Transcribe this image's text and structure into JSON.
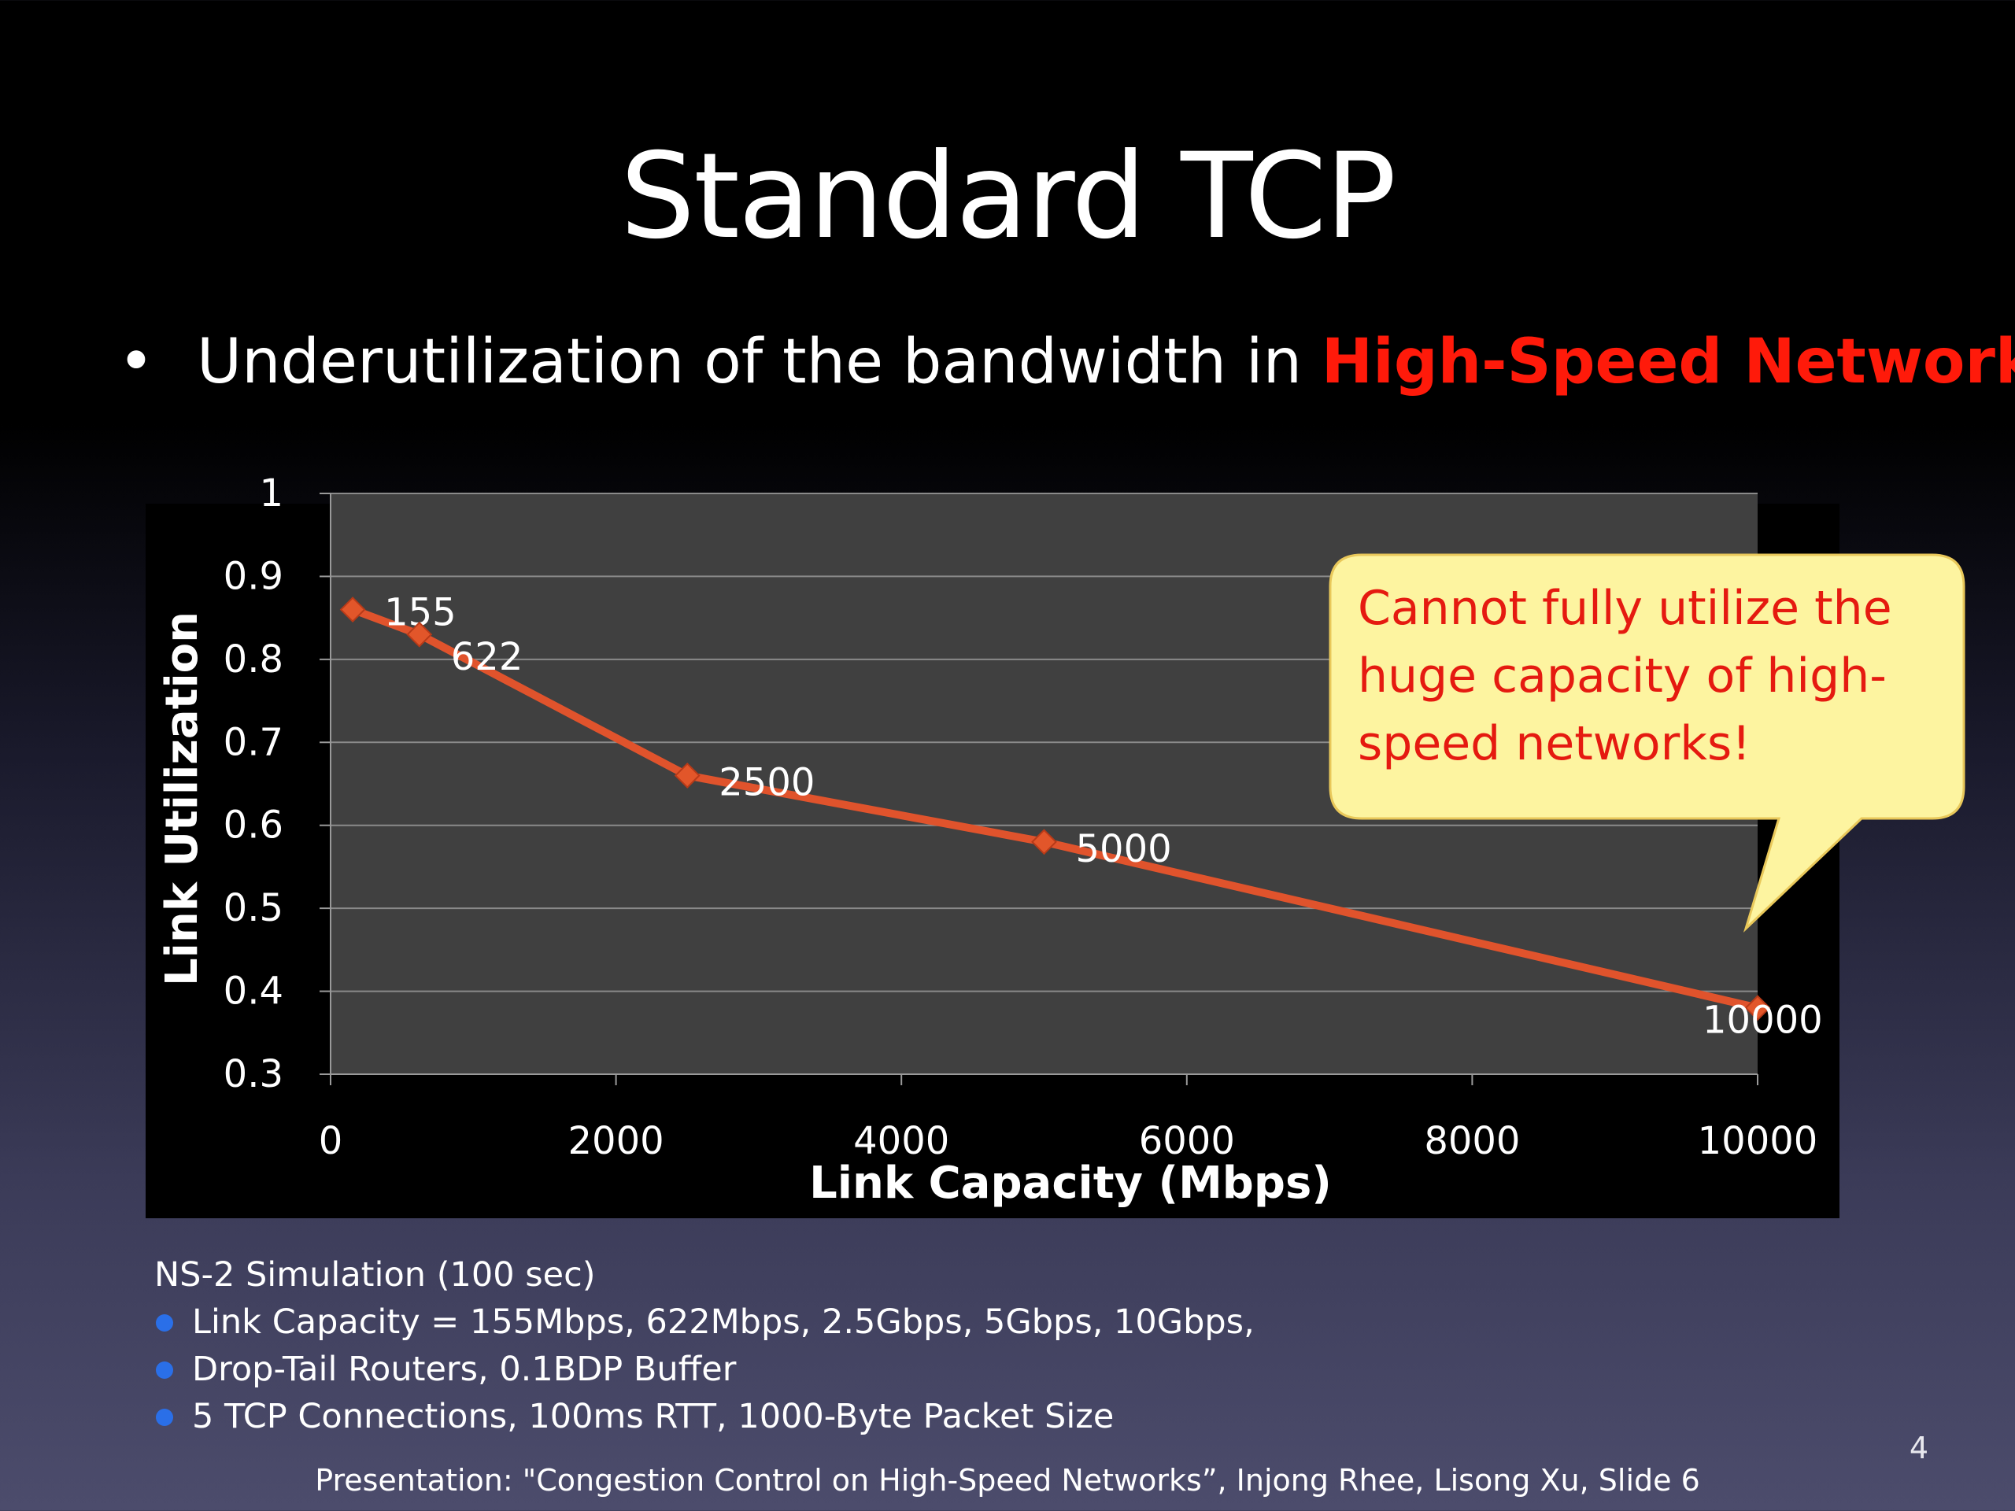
{
  "slide": {
    "title": "Standard TCP",
    "headline": {
      "bullet": "•",
      "text_plain": "Underutilization of the bandwidth in ",
      "text_highlight": "High-Speed Network"
    },
    "callout": "Cannot fully utilize the huge capacity of high-speed networks!",
    "notes": [
      "NS-2 Simulation (100 sec)",
      "Link Capacity = 155Mbps, 622Mbps, 2.5Gbps, 5Gbps, 10Gbps,",
      "Drop-Tail Routers, 0.1BDP Buffer",
      "5 TCP Connections, 100ms RTT, 1000-Byte Packet Size"
    ],
    "citation": "Presentation: \"Congestion Control on High-Speed Networks”, Injong Rhee, Lisong Xu, Slide 6",
    "slide_number": "4"
  },
  "colors": {
    "highlight": "#ff1a0a",
    "series_line": "#e0532c",
    "marker": "#e2562a",
    "plot_background": "#404040",
    "callout_fill": "#fdf4a0",
    "callout_text": "#e51a10",
    "note_bullet": "#2a6fe8"
  },
  "chart_data": {
    "type": "scatter",
    "title": "",
    "xlabel": "Link Capacity (Mbps)",
    "ylabel": "Link Utilization",
    "xlim": [
      0,
      10000
    ],
    "ylim": [
      0.3,
      1
    ],
    "xticks": [
      "0",
      "2000",
      "4000",
      "6000",
      "8000",
      "10000"
    ],
    "yticks": [
      "0.3",
      "0.4",
      "0.5",
      "0.6",
      "0.7",
      "0.8",
      "0.9",
      "1"
    ],
    "grid": true,
    "legend": "none",
    "series": [
      {
        "x": [
          155,
          622,
          2500,
          5000,
          10000
        ],
        "y": [
          0.86,
          0.83,
          0.66,
          0.58,
          0.38
        ],
        "labels": [
          "155",
          "622",
          "2500",
          "5000",
          "10000"
        ],
        "line": true,
        "marker": "diamond"
      }
    ]
  }
}
